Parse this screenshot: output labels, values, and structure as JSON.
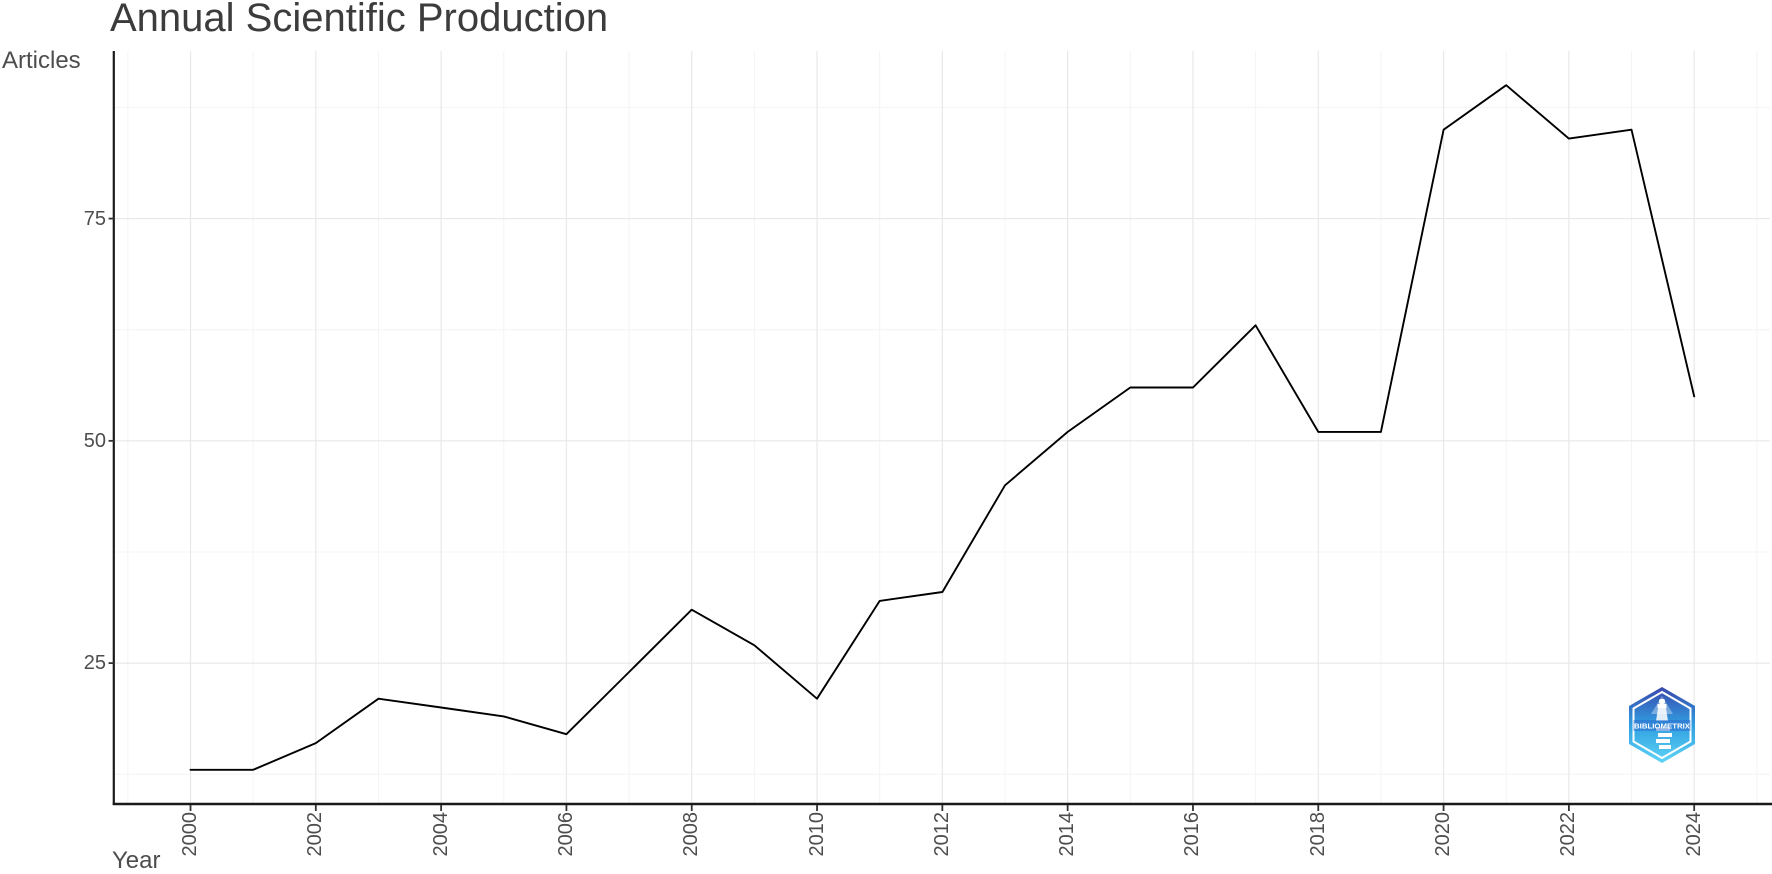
{
  "title": "Annual Scientific Production",
  "y_axis_title": "Articles",
  "x_axis_title": "Year",
  "logo": {
    "text": "BIBLIOMETRIX"
  },
  "colors": {
    "line": "#000000",
    "axis_line": "#1a1a1a",
    "tick_mark": "#333333",
    "grid_major": "#e8e8e8",
    "grid_minor": "#f4f4f4",
    "tick_label": "#4d4d4d",
    "title_text": "#3c3c3c",
    "logo_top": "#3a47ad",
    "logo_mid": "#2f9fe0",
    "logo_bottom": "#5fd4f7"
  },
  "chart_data": {
    "type": "line",
    "title": "Annual Scientific Production",
    "xlabel": "Year",
    "ylabel": "Articles",
    "x": [
      2000,
      2001,
      2002,
      2003,
      2004,
      2005,
      2006,
      2007,
      2008,
      2009,
      2010,
      2011,
      2012,
      2013,
      2014,
      2015,
      2016,
      2017,
      2018,
      2019,
      2020,
      2021,
      2022,
      2023,
      2024
    ],
    "values": [
      13,
      13,
      16,
      21,
      20,
      19,
      17,
      24,
      31,
      27,
      21,
      32,
      33,
      45,
      51,
      56,
      56,
      63,
      51,
      51,
      85,
      90,
      84,
      85,
      55
    ],
    "series_name": "Articles",
    "x_tick_labels": [
      "2000",
      "2002",
      "2004",
      "2006",
      "2008",
      "2010",
      "2012",
      "2014",
      "2016",
      "2018",
      "2020",
      "2022",
      "2024"
    ],
    "y_tick_labels": [
      "25",
      "50",
      "75"
    ],
    "x_minor_grid_years": [
      1999,
      2001,
      2003,
      2005,
      2007,
      2009,
      2011,
      2013,
      2015,
      2017,
      2019,
      2021,
      2023,
      2025
    ],
    "y_minor_grid_values": [
      12.5,
      37.5,
      62.5,
      87.5
    ],
    "xlim": [
      1998.79,
      2025.21
    ],
    "ylim": [
      9.15,
      93.85
    ],
    "grid": true,
    "legend": "none"
  }
}
